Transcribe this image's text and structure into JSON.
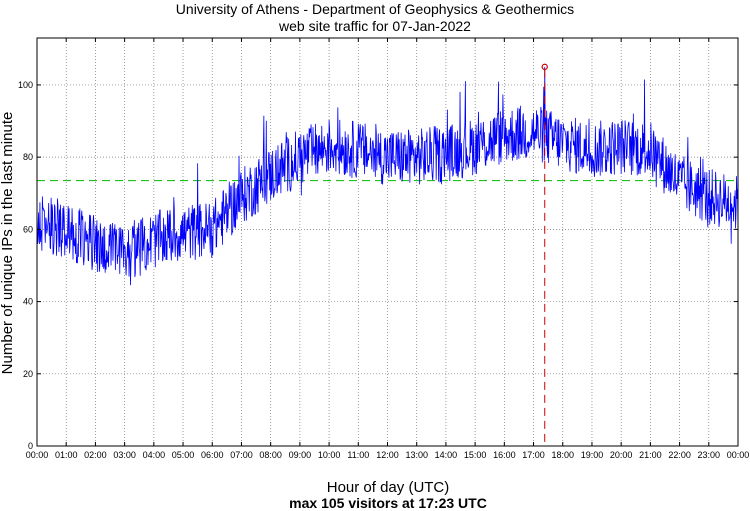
{
  "chart_data": {
    "type": "line",
    "title": "University of Athens - Department of Geophysics & Geothermics",
    "subtitle": "web site traffic for 07-Jan-2022",
    "xlabel": "Hour of day (UTC)",
    "ylabel": "Number of unique IPs in the last minute",
    "footer": "max 105 visitors at 17:23 UTC",
    "x_range_minutes": [
      0,
      1440
    ],
    "ylim": [
      0,
      113
    ],
    "y_ticks": [
      0,
      20,
      40,
      60,
      80,
      100
    ],
    "y_tick_labels": [
      "0",
      "20",
      "40",
      "60",
      "80",
      "100"
    ],
    "x_tick_labels": [
      "00:00",
      "01:00",
      "02:00",
      "03:00",
      "04:00",
      "05:00",
      "06:00",
      "07:00",
      "08:00",
      "09:00",
      "10:00",
      "11:00",
      "12:00",
      "13:00",
      "14:00",
      "15:00",
      "16:00",
      "17:00",
      "18:00",
      "19:00",
      "20:00",
      "21:00",
      "22:00",
      "23:00",
      "00:00"
    ],
    "grid": true,
    "mean_line": 73.5,
    "max_point": {
      "minute": 1043,
      "value": 105
    },
    "series_color": "#0000ff",
    "mean_color": "#00bb00",
    "max_color": "#cc0000",
    "hourly_levels": {
      "hours": [
        0,
        1,
        2,
        3,
        4,
        5,
        6,
        7,
        8,
        9,
        10,
        11,
        12,
        13,
        14,
        15,
        16,
        17,
        18,
        19,
        20,
        21,
        22,
        23,
        24
      ],
      "values": [
        62,
        60,
        56,
        53,
        57,
        59,
        60,
        69,
        75,
        80,
        83,
        82,
        80,
        80,
        81,
        83,
        86,
        87,
        84,
        82,
        83,
        82,
        73,
        69,
        67
      ]
    },
    "noise_amplitude": 8
  }
}
